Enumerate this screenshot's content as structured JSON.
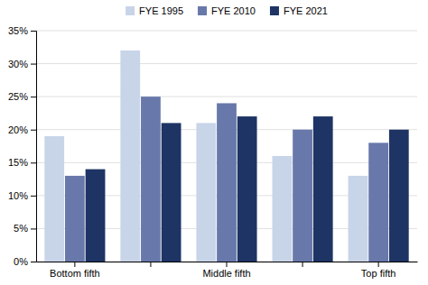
{
  "chart_data": {
    "type": "bar",
    "categories": [
      "Bottom fifth",
      null,
      "Middle fifth",
      null,
      "Top fifth"
    ],
    "series": [
      {
        "name": "FYE 1995",
        "color": "#c8d4e8",
        "values": [
          19,
          32,
          21,
          16,
          13
        ]
      },
      {
        "name": "FYE 2010",
        "color": "#6878aa",
        "values": [
          13,
          25,
          24,
          20,
          18
        ]
      },
      {
        "name": "FYE 2021",
        "color": "#1e3464",
        "values": [
          14,
          21,
          22,
          22,
          20
        ]
      }
    ],
    "ylim": [
      0,
      35
    ],
    "yticks": [
      {
        "value": 0,
        "label": "0%"
      },
      {
        "value": 5,
        "label": "5%"
      },
      {
        "value": 10,
        "label": "10%"
      },
      {
        "value": 15,
        "label": "15%"
      },
      {
        "value": 20,
        "label": "20%"
      },
      {
        "value": 25,
        "label": "25%"
      },
      {
        "value": 30,
        "label": "30%"
      },
      {
        "value": 35,
        "label": "35%"
      }
    ],
    "grid": true,
    "legend": "top"
  }
}
